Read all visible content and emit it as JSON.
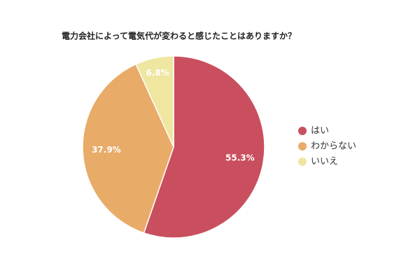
{
  "chart_data": {
    "type": "pie",
    "title": "電力会社によって電気代が変わると感じたことはありますか？",
    "categories": [
      "はい",
      "わからない",
      "いいえ"
    ],
    "values": [
      55.3,
      37.9,
      6.8
    ],
    "value_labels": [
      "55.3%",
      "37.9%",
      "6.8%"
    ],
    "colors": [
      "#c94f5e",
      "#e8ab68",
      "#efe6a0"
    ],
    "legend": "right"
  }
}
